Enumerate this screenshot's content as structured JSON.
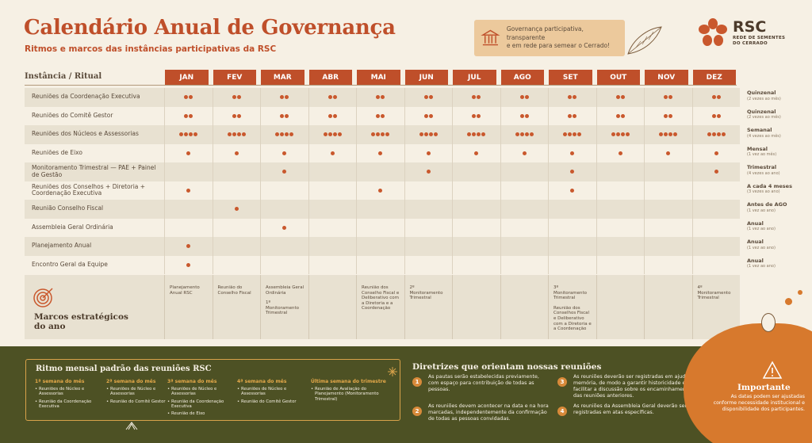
{
  "header": {
    "title": "Calendário Anual de Governança",
    "subtitle": "Ritmos e marcos das instâncias participativas da RSC"
  },
  "callout": {
    "line1": "Governança participativa, transparente",
    "line2": "e em rede para semear o Cerrado!"
  },
  "logo": {
    "name": "RSC",
    "sub1": "REDE DE SEMENTES",
    "sub2": "DO CERRADO"
  },
  "table": {
    "col_label": "Instância / Ritual",
    "months": [
      "JAN",
      "FEV",
      "MAR",
      "ABR",
      "MAI",
      "JUN",
      "JUL",
      "AGO",
      "SET",
      "OUT",
      "NOV",
      "DEZ"
    ],
    "rows": [
      {
        "label": "Reuniões da Coordenação Executiva",
        "dots": [
          2,
          2,
          2,
          2,
          2,
          2,
          2,
          2,
          2,
          2,
          2,
          2
        ],
        "freq": "Quinzenal",
        "freq_note": "(2 vezes ao mês)"
      },
      {
        "label": "Reuniões do Comitê Gestor",
        "dots": [
          2,
          2,
          2,
          2,
          2,
          2,
          2,
          2,
          2,
          2,
          2,
          2
        ],
        "freq": "Quinzenal",
        "freq_note": "(2 vezes ao mês)"
      },
      {
        "label": "Reuniões dos Núcleos e Assessorias",
        "dots": [
          4,
          4,
          4,
          4,
          4,
          4,
          4,
          4,
          4,
          4,
          4,
          4
        ],
        "freq": "Semanal",
        "freq_note": "(4 vezes ao mês)"
      },
      {
        "label": "Reuniões de Eixo",
        "dots": [
          1,
          1,
          1,
          1,
          1,
          1,
          1,
          1,
          1,
          1,
          1,
          1
        ],
        "freq": "Mensal",
        "freq_note": "(1 vez ao mês)"
      },
      {
        "label": "Monitoramento Trimestral — PAE + Painel de Gestão",
        "dots": [
          0,
          0,
          1,
          0,
          0,
          1,
          0,
          0,
          1,
          0,
          0,
          1
        ],
        "freq": "Trimestral",
        "freq_note": "(4 vezes ao ano)"
      },
      {
        "label": "Reuniões dos Conselhos + Diretoria + Coordenação Executiva",
        "dots": [
          1,
          0,
          0,
          0,
          1,
          0,
          0,
          0,
          1,
          0,
          0,
          0
        ],
        "freq": "A cada 4 meses",
        "freq_note": "(3 vezes ao ano)"
      },
      {
        "label": "Reunião Conselho Fiscal",
        "dots": [
          0,
          1,
          0,
          0,
          0,
          0,
          0,
          0,
          0,
          0,
          0,
          0
        ],
        "freq": "Antes de AGO",
        "freq_note": "(1 vez ao ano)"
      },
      {
        "label": "Assembleia Geral Ordinária",
        "dots": [
          0,
          0,
          1,
          0,
          0,
          0,
          0,
          0,
          0,
          0,
          0,
          0
        ],
        "freq": "Anual",
        "freq_note": "(1 vez ao ano)"
      },
      {
        "label": "Planejamento Anual",
        "dots": [
          1,
          0,
          0,
          0,
          0,
          0,
          0,
          0,
          0,
          0,
          0,
          0
        ],
        "freq": "Anual",
        "freq_note": "(1 vez ao ano)"
      },
      {
        "label": "Encontro Geral da Equipe",
        "dots": [
          1,
          0,
          0,
          0,
          0,
          0,
          0,
          0,
          0,
          0,
          0,
          0
        ],
        "freq": "Anual",
        "freq_note": "(1 vez ao ano)"
      }
    ]
  },
  "marcos": {
    "title_line1": "Marcos estratégicos",
    "title_line2": "do ano",
    "cells": [
      [
        "Planejamento Anual RSC"
      ],
      [
        "Reunião do Conselho Fiscal"
      ],
      [
        "Assembleia Geral Ordinária",
        "1º Monitoramento Trimestral"
      ],
      [],
      [
        "Reunião dos Conselho Fiscal e Deliberativo com a Diretoria e a Coordenação"
      ],
      [
        "2º Monitoramento Trimestral"
      ],
      [],
      [],
      [
        "3º Monitoramento Trimestral",
        "Reunião dos Conselhos Fiscal e Deliberativo com a Diretoria e a Coordenação"
      ],
      [],
      [],
      [
        "4º Monitoramento Trimestral"
      ]
    ]
  },
  "ritmo": {
    "title": "Ritmo mensal padrão das reuniões RSC",
    "weeks": [
      {
        "title": "1ª semana do mês",
        "items": [
          "Reuniões de Núcleo e Assessorias",
          "Reunião da Coordenação Executiva"
        ]
      },
      {
        "title": "2ª semana do mês",
        "items": [
          "Reuniões de Núcleo e Assessorias",
          "Reunião do Comitê Gestor"
        ]
      },
      {
        "title": "3ª semana do mês",
        "items": [
          "Reuniões de Núcleo e Assessorias",
          "Reunião da Coordenação Executiva",
          "Reunião de Eixo"
        ]
      },
      {
        "title": "4ª semana do mês",
        "items": [
          "Reuniões de Núcleo e Assessorias",
          "Reunião do Comitê Gestor"
        ]
      },
      {
        "title": "Última semana do trimestre",
        "items": [
          "Reunião de Avaliação do Planejamento (Monitoramento Trimestral)"
        ]
      }
    ]
  },
  "diretrizes": {
    "title": "Diretrizes que orientam nossas reuniões",
    "items": [
      {
        "num": "1",
        "text": "As pautas serão estabelecidas previamente, com espaço para contribuição de todas as pessoas."
      },
      {
        "num": "2",
        "text": "As reuniões devem acontecer na data e na hora marcadas, independentemente da confirmação de todas as pessoas convidadas."
      },
      {
        "num": "3",
        "text": "As reuniões deverão ser registradas em ajuda memória, de modo a garantir historicidade e facilitar a discussão sobre os encaminhamentos das reuniões anteriores."
      },
      {
        "num": "4",
        "text": "As reuniões da Assembleia Geral deverão ser registradas em atas específicas."
      }
    ]
  },
  "importante": {
    "title": "Importante",
    "text": "As datas podem ser ajustadas conforme necessidade institucional e disponibilidade dos participantes."
  },
  "colors": {
    "accent": "#bf4f2a",
    "dark_green": "#4d5124",
    "orange": "#d7792d",
    "cream": "#f6f0e4"
  }
}
